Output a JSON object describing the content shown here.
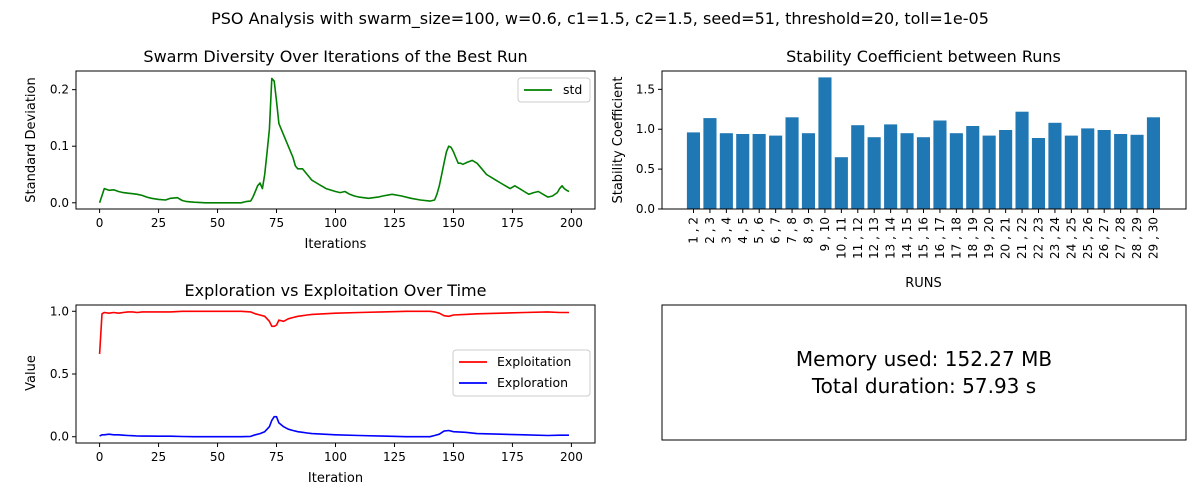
{
  "suptitle": "PSO Analysis with swarm_size=100, w=0.6, c1=1.5, c2=1.5, seed=51, threshold=20, toll=1e-05",
  "colors": {
    "std": "#008000",
    "bar": "#1f77b4",
    "exploitation": "#ff0000",
    "exploration": "#0000ff",
    "axis": "#000000"
  },
  "chart_data": [
    {
      "id": "diversity",
      "type": "line",
      "title": "Swarm Diversity Over Iterations of the Best Run",
      "xlabel": "Iterations",
      "ylabel": "Standard Deviation",
      "xlim": [
        -10,
        210
      ],
      "ylim": [
        -0.011,
        0.233
      ],
      "xticks": [
        0,
        25,
        50,
        75,
        100,
        125,
        150,
        175,
        200
      ],
      "xtick_labels": [
        "0",
        "25",
        "50",
        "75",
        "100",
        "125",
        "150",
        "175",
        "200"
      ],
      "yticks": [
        0.0,
        0.1,
        0.2
      ],
      "ytick_labels": [
        "0.0",
        "0.1",
        "0.2"
      ],
      "legend": "top-right",
      "series": [
        {
          "name": "std",
          "x": [
            0,
            2,
            4,
            6,
            8,
            10,
            12,
            14,
            16,
            18,
            20,
            22,
            25,
            28,
            30,
            33,
            35,
            37,
            40,
            45,
            50,
            55,
            60,
            62,
            64,
            65,
            66,
            67,
            68,
            69,
            70,
            71,
            72,
            73,
            74,
            75,
            76,
            78,
            80,
            82,
            83,
            84,
            86,
            88,
            90,
            92,
            94,
            96,
            100,
            102,
            104,
            106,
            108,
            110,
            114,
            118,
            120,
            124,
            128,
            132,
            136,
            140,
            142,
            143,
            144,
            145,
            146,
            147,
            148,
            149,
            150,
            151,
            152,
            153,
            154,
            156,
            158,
            160,
            162,
            164,
            166,
            168,
            170,
            172,
            174,
            176,
            178,
            180,
            182,
            184,
            186,
            188,
            190,
            192,
            194,
            195,
            196,
            197,
            198,
            199
          ],
          "values": [
            0.0,
            0.025,
            0.022,
            0.023,
            0.02,
            0.018,
            0.017,
            0.016,
            0.015,
            0.013,
            0.01,
            0.008,
            0.006,
            0.005,
            0.008,
            0.009,
            0.004,
            0.002,
            0.001,
            0.0,
            0.0,
            0.0,
            0.0,
            0.002,
            0.003,
            0.01,
            0.02,
            0.03,
            0.035,
            0.025,
            0.05,
            0.09,
            0.13,
            0.22,
            0.215,
            0.18,
            0.14,
            0.12,
            0.1,
            0.08,
            0.065,
            0.06,
            0.06,
            0.05,
            0.04,
            0.035,
            0.03,
            0.025,
            0.02,
            0.018,
            0.02,
            0.015,
            0.012,
            0.01,
            0.008,
            0.01,
            0.012,
            0.015,
            0.012,
            0.008,
            0.005,
            0.003,
            0.005,
            0.015,
            0.03,
            0.05,
            0.07,
            0.09,
            0.1,
            0.098,
            0.09,
            0.08,
            0.07,
            0.07,
            0.068,
            0.072,
            0.075,
            0.07,
            0.06,
            0.05,
            0.045,
            0.04,
            0.035,
            0.03,
            0.025,
            0.03,
            0.025,
            0.02,
            0.015,
            0.018,
            0.02,
            0.015,
            0.01,
            0.012,
            0.018,
            0.025,
            0.03,
            0.025,
            0.022,
            0.02
          ]
        }
      ]
    },
    {
      "id": "stability",
      "type": "bar",
      "title": "Stability Coefficient between Runs",
      "xlabel": "RUNS",
      "ylabel": "Stability Coefficient",
      "ylim": [
        0,
        1.73
      ],
      "yticks": [
        0.0,
        0.5,
        1.0,
        1.5
      ],
      "ytick_labels": [
        "0.0",
        "0.5",
        "1.0",
        "1.5"
      ],
      "categories": [
        "1 , 2",
        "2 , 3",
        "3 , 4",
        "4 , 5",
        "5 , 6",
        "6 , 7",
        "7 , 8",
        "8 , 9",
        "9 , 10",
        "10 , 11",
        "11 , 12",
        "12 , 13",
        "13 , 14",
        "14 , 15",
        "15 , 16",
        "16 , 17",
        "17 , 18",
        "18 , 19",
        "19 , 20",
        "20 , 21",
        "21 , 22",
        "22 , 23",
        "23 , 24",
        "24 , 25",
        "25 , 26",
        "26 , 27",
        "27 , 28",
        "28 , 29",
        "29 , 30"
      ],
      "values": [
        0.96,
        1.14,
        0.95,
        0.94,
        0.94,
        0.92,
        1.15,
        0.95,
        1.65,
        0.65,
        1.05,
        0.9,
        1.06,
        0.95,
        0.9,
        1.11,
        0.95,
        1.04,
        0.92,
        0.99,
        1.22,
        0.89,
        1.08,
        0.92,
        1.01,
        0.99,
        0.94,
        0.93,
        1.15
      ]
    },
    {
      "id": "explore",
      "type": "line",
      "title": "Exploration vs Exploitation Over Time",
      "xlabel": "Iteration",
      "ylabel": "Value",
      "xlim": [
        -10,
        210
      ],
      "ylim": [
        -0.05,
        1.05
      ],
      "xticks": [
        0,
        25,
        50,
        75,
        100,
        125,
        150,
        175,
        200
      ],
      "xtick_labels": [
        "0",
        "25",
        "50",
        "75",
        "100",
        "125",
        "150",
        "175",
        "200"
      ],
      "yticks": [
        0.0,
        0.5,
        1.0
      ],
      "ytick_labels": [
        "0.0",
        "0.5",
        "1.0"
      ],
      "legend": "center-right",
      "series": [
        {
          "name": "Exploitation",
          "x": [
            0,
            1,
            2,
            4,
            6,
            8,
            10,
            12,
            14,
            16,
            18,
            20,
            25,
            30,
            35,
            40,
            50,
            60,
            64,
            66,
            68,
            70,
            72,
            73,
            74,
            75,
            76,
            78,
            80,
            82,
            84,
            86,
            88,
            90,
            95,
            100,
            110,
            120,
            130,
            140,
            142,
            144,
            146,
            148,
            150,
            155,
            160,
            170,
            180,
            190,
            195,
            199
          ],
          "values": [
            0.66,
            0.98,
            0.99,
            0.985,
            0.99,
            0.985,
            0.99,
            0.995,
            0.995,
            0.99,
            0.995,
            0.995,
            0.995,
            0.995,
            1.0,
            1.0,
            1.0,
            1.0,
            0.995,
            0.98,
            0.97,
            0.96,
            0.92,
            0.88,
            0.88,
            0.89,
            0.93,
            0.92,
            0.94,
            0.95,
            0.96,
            0.965,
            0.97,
            0.975,
            0.98,
            0.985,
            0.99,
            0.995,
            1.0,
            1.0,
            0.995,
            0.985,
            0.965,
            0.96,
            0.97,
            0.975,
            0.98,
            0.985,
            0.99,
            0.995,
            0.99,
            0.99
          ]
        },
        {
          "name": "Exploration",
          "x": [
            0,
            1,
            2,
            4,
            6,
            8,
            10,
            12,
            14,
            16,
            18,
            20,
            25,
            30,
            35,
            40,
            50,
            60,
            64,
            66,
            68,
            70,
            72,
            73,
            74,
            75,
            76,
            78,
            80,
            82,
            84,
            86,
            88,
            90,
            95,
            100,
            110,
            120,
            130,
            140,
            142,
            144,
            146,
            148,
            150,
            155,
            160,
            170,
            180,
            190,
            195,
            199
          ],
          "values": [
            0.005,
            0.015,
            0.015,
            0.02,
            0.015,
            0.015,
            0.012,
            0.01,
            0.008,
            0.006,
            0.005,
            0.005,
            0.004,
            0.004,
            0.002,
            0.0,
            0.0,
            0.0,
            0.003,
            0.015,
            0.025,
            0.04,
            0.08,
            0.13,
            0.16,
            0.16,
            0.11,
            0.08,
            0.06,
            0.05,
            0.04,
            0.035,
            0.03,
            0.025,
            0.02,
            0.015,
            0.01,
            0.005,
            0.0,
            0.0,
            0.01,
            0.02,
            0.045,
            0.05,
            0.04,
            0.035,
            0.025,
            0.02,
            0.015,
            0.01,
            0.012,
            0.012
          ]
        }
      ]
    }
  ],
  "info_box": {
    "memory": "Memory used: 152.27 MB",
    "duration": "Total duration: 57.93 s"
  }
}
